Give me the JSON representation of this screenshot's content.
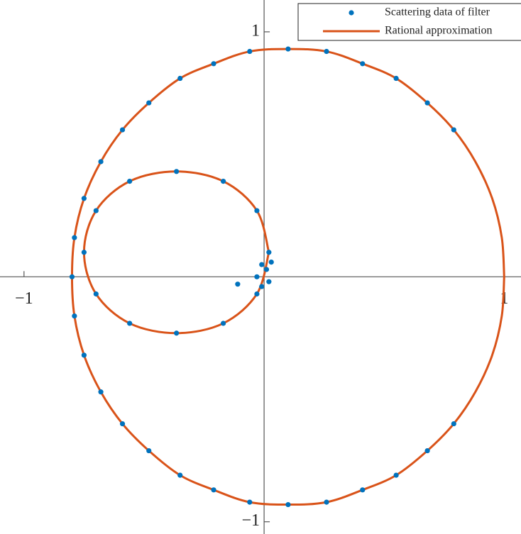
{
  "chart_data": {
    "type": "scatter-line",
    "xlim": [
      -1.1,
      1.07
    ],
    "ylim": [
      -1.05,
      1.13
    ],
    "xticks": [
      {
        "value": -1,
        "label": "−1"
      },
      {
        "value": 1,
        "label": "1"
      }
    ],
    "yticks": [
      {
        "value": -1,
        "label": "−1"
      },
      {
        "value": 1,
        "label": "1"
      }
    ],
    "series": [
      {
        "name": "Scattering data of filter",
        "color": "#0072bd",
        "kind": "points",
        "x": [
          0.79,
          0.68,
          0.55,
          0.41,
          0.26,
          0.1,
          -0.06,
          -0.21,
          -0.35,
          -0.48,
          -0.59,
          -0.68,
          -0.75,
          -0.79,
          -0.8,
          -0.79,
          -0.75,
          -0.68,
          -0.59,
          -0.48,
          -0.35,
          -0.21,
          -0.06,
          0.1,
          0.26,
          0.41,
          0.55,
          0.68,
          0.79,
          0.02,
          -0.03,
          -0.17,
          -0.365,
          -0.56,
          -0.7,
          -0.75,
          -0.7,
          -0.56,
          -0.365,
          -0.17,
          -0.03,
          0.01,
          0.03,
          0.02,
          -0.01,
          -0.03,
          -0.01,
          -0.11
        ],
        "y": [
          0.6,
          0.71,
          0.81,
          0.87,
          0.92,
          0.93,
          0.92,
          0.87,
          0.81,
          0.71,
          0.6,
          0.47,
          0.32,
          0.16,
          0,
          -0.16,
          -0.32,
          -0.47,
          -0.6,
          -0.71,
          -0.81,
          -0.87,
          -0.92,
          -0.93,
          -0.92,
          -0.87,
          -0.81,
          -0.71,
          -0.6,
          0.1,
          0.27,
          0.39,
          0.43,
          0.39,
          0.27,
          0.1,
          -0.07,
          -0.19,
          -0.23,
          -0.19,
          -0.07,
          0.03,
          0.06,
          -0.02,
          -0.04,
          0.0,
          0.05,
          -0.03
        ]
      },
      {
        "name": "Rational approximation",
        "color": "#d95319",
        "kind": "line",
        "x": [
          1.0,
          0.99,
          0.95,
          0.88,
          0.79,
          0.68,
          0.55,
          0.41,
          0.26,
          0.1,
          -0.06,
          -0.21,
          -0.35,
          -0.48,
          -0.59,
          -0.68,
          -0.75,
          -0.79,
          -0.8,
          -0.79,
          -0.75,
          -0.68,
          -0.59,
          -0.48,
          -0.35,
          -0.21,
          -0.06,
          0.1,
          0.26,
          0.41,
          0.55,
          0.68,
          0.79,
          0.88,
          0.95,
          0.99,
          1.0,
          null,
          0.02,
          -0.03,
          -0.17,
          -0.365,
          -0.56,
          -0.7,
          -0.75,
          -0.7,
          -0.56,
          -0.365,
          -0.17,
          -0.03,
          0.02
        ],
        "y": [
          0,
          0.16,
          0.32,
          0.47,
          0.6,
          0.71,
          0.81,
          0.87,
          0.92,
          0.93,
          0.92,
          0.87,
          0.81,
          0.71,
          0.6,
          0.47,
          0.32,
          0.16,
          0,
          -0.16,
          -0.32,
          -0.47,
          -0.6,
          -0.71,
          -0.81,
          -0.87,
          -0.92,
          -0.93,
          -0.92,
          -0.87,
          -0.81,
          -0.71,
          -0.6,
          -0.47,
          -0.32,
          -0.16,
          0,
          null,
          0.1,
          0.27,
          0.39,
          0.43,
          0.39,
          0.27,
          0.1,
          -0.07,
          -0.19,
          -0.23,
          -0.19,
          -0.07,
          0.1
        ]
      }
    ]
  }
}
